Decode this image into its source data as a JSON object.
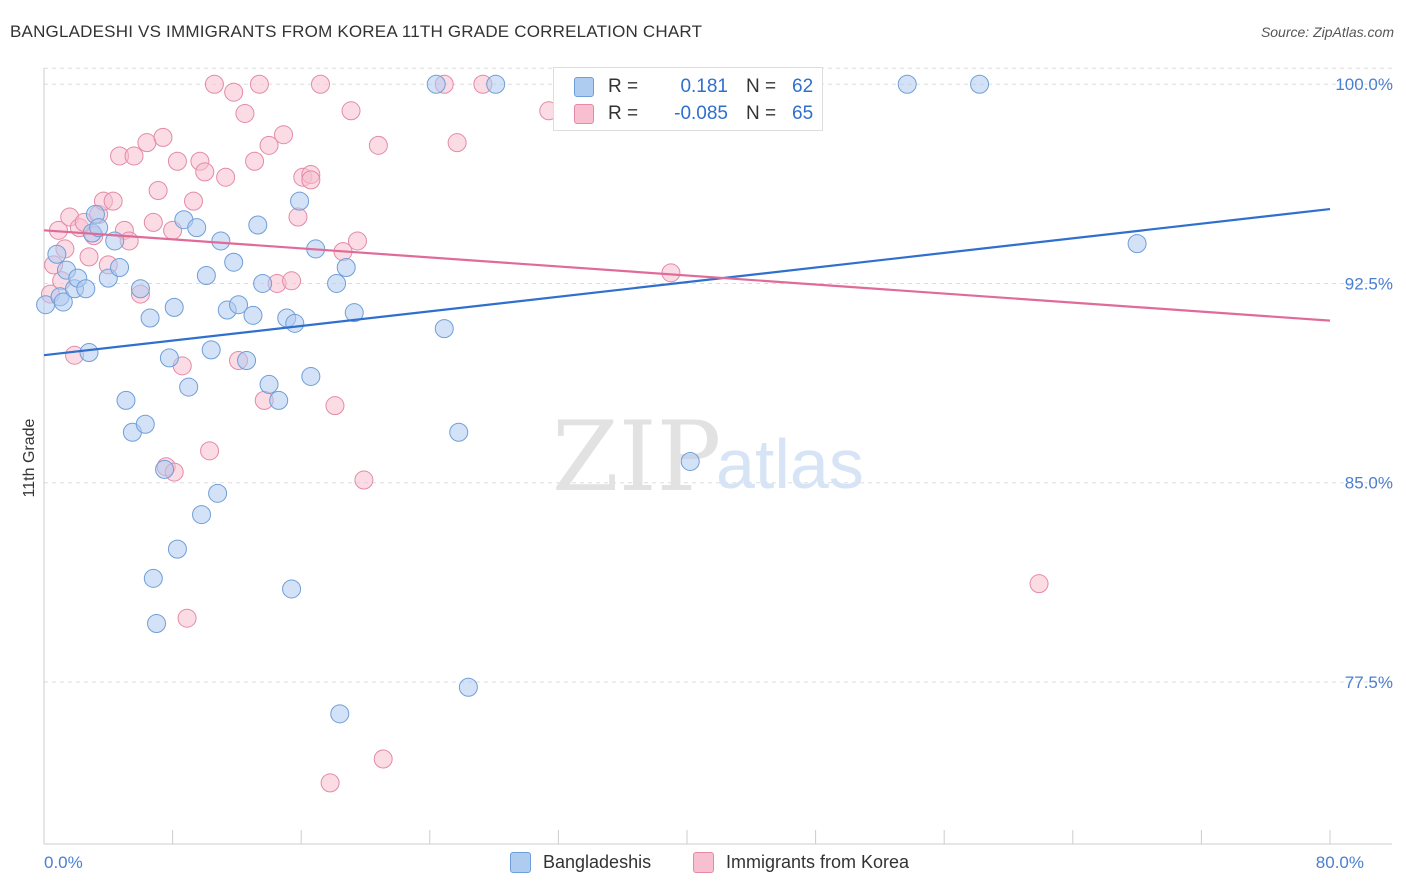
{
  "title": "BANGLADESHI VS IMMIGRANTS FROM KOREA 11TH GRADE CORRELATION CHART",
  "source": "Source: ZipAtlas.com",
  "watermark": {
    "zip": "ZIP",
    "atlas": "atlas"
  },
  "legend": {
    "series1": {
      "r_label": "R =",
      "r_value": "0.181",
      "n_label": "N =",
      "n_value": "62"
    },
    "series2": {
      "r_label": "R =",
      "r_value": "-0.085",
      "n_label": "N =",
      "n_value": "65"
    }
  },
  "bottom_legend": {
    "series1": "Bangladeshis",
    "series2": "Immigrants from Korea"
  },
  "colors": {
    "series1_fill": "#aecbf0",
    "series1_stroke": "#6f9fd8",
    "series1_line": "#2f6fce",
    "series2_fill": "#f7bfd0",
    "series2_stroke": "#e38aa8",
    "series2_line": "#e06b98",
    "grid": "#dddddd",
    "tick_label": "#4a7fd0"
  },
  "chart_data": {
    "type": "scatter",
    "title": "BANGLADESHI VS IMMIGRANTS FROM KOREA 11TH GRADE CORRELATION CHART",
    "xlabel": "",
    "ylabel": "11th Grade",
    "xlim": [
      0,
      80
    ],
    "ylim": [
      71.4,
      101.1
    ],
    "x_tick_labels": [
      {
        "value": 0,
        "label": "0.0%"
      },
      {
        "value": 80,
        "label": "80.0%"
      }
    ],
    "y_tick_labels": [
      {
        "value": 100,
        "label": "100.0%"
      },
      {
        "value": 92.5,
        "label": "92.5%"
      },
      {
        "value": 85,
        "label": "85.0%"
      },
      {
        "value": 77.5,
        "label": "77.5%"
      }
    ],
    "series": [
      {
        "name": "Bangladeshis",
        "r": 0.181,
        "n": 62,
        "trend": [
          [
            0,
            89.8
          ],
          [
            80,
            95.3
          ]
        ],
        "points": [
          [
            0.1,
            91.7
          ],
          [
            0.8,
            93.6
          ],
          [
            1.0,
            92.0
          ],
          [
            1.2,
            91.8
          ],
          [
            1.4,
            93.0
          ],
          [
            1.9,
            92.3
          ],
          [
            2.1,
            92.7
          ],
          [
            2.6,
            92.3
          ],
          [
            3.0,
            94.4
          ],
          [
            3.2,
            95.1
          ],
          [
            2.8,
            89.9
          ],
          [
            4.0,
            92.7
          ],
          [
            4.4,
            94.1
          ],
          [
            4.7,
            93.1
          ],
          [
            5.1,
            88.1
          ],
          [
            5.5,
            86.9
          ],
          [
            6.0,
            92.3
          ],
          [
            6.3,
            87.2
          ],
          [
            6.6,
            91.2
          ],
          [
            6.8,
            81.4
          ],
          [
            7.0,
            79.7
          ],
          [
            7.5,
            85.5
          ],
          [
            7.8,
            89.7
          ],
          [
            8.1,
            91.6
          ],
          [
            8.3,
            82.5
          ],
          [
            8.7,
            94.9
          ],
          [
            9.0,
            88.6
          ],
          [
            9.5,
            94.6
          ],
          [
            9.8,
            83.8
          ],
          [
            10.1,
            92.8
          ],
          [
            10.4,
            90.0
          ],
          [
            10.8,
            84.6
          ],
          [
            11.0,
            94.1
          ],
          [
            11.4,
            91.5
          ],
          [
            11.8,
            93.3
          ],
          [
            12.1,
            91.7
          ],
          [
            12.6,
            89.6
          ],
          [
            13.0,
            91.3
          ],
          [
            13.3,
            94.7
          ],
          [
            13.6,
            92.5
          ],
          [
            14.0,
            88.7
          ],
          [
            14.6,
            88.1
          ],
          [
            15.1,
            91.2
          ],
          [
            15.4,
            81.0
          ],
          [
            15.6,
            91.0
          ],
          [
            15.9,
            95.6
          ],
          [
            16.6,
            89.0
          ],
          [
            16.9,
            93.8
          ],
          [
            18.2,
            92.5
          ],
          [
            18.4,
            76.3
          ],
          [
            18.8,
            93.1
          ],
          [
            19.3,
            91.4
          ],
          [
            24.4,
            100.0
          ],
          [
            24.9,
            90.8
          ],
          [
            25.8,
            86.9
          ],
          [
            26.4,
            77.3
          ],
          [
            28.1,
            100.0
          ],
          [
            40.2,
            85.8
          ],
          [
            53.7,
            100.0
          ],
          [
            58.2,
            100.0
          ],
          [
            68.0,
            94.0
          ],
          [
            3.4,
            94.6
          ]
        ]
      },
      {
        "name": "Immigrants from Korea",
        "r": -0.085,
        "n": 65,
        "trend": [
          [
            0,
            94.5
          ],
          [
            80,
            91.1
          ]
        ],
        "points": [
          [
            0.4,
            92.1
          ],
          [
            0.6,
            93.2
          ],
          [
            0.9,
            94.5
          ],
          [
            1.1,
            92.6
          ],
          [
            1.3,
            93.8
          ],
          [
            1.6,
            95.0
          ],
          [
            1.9,
            89.8
          ],
          [
            2.2,
            94.6
          ],
          [
            2.5,
            94.8
          ],
          [
            2.8,
            93.5
          ],
          [
            3.1,
            94.3
          ],
          [
            3.4,
            95.1
          ],
          [
            3.7,
            95.6
          ],
          [
            4.0,
            93.2
          ],
          [
            4.3,
            95.6
          ],
          [
            4.7,
            97.3
          ],
          [
            5.0,
            94.5
          ],
          [
            5.3,
            94.1
          ],
          [
            5.6,
            97.3
          ],
          [
            6.0,
            92.1
          ],
          [
            6.4,
            97.8
          ],
          [
            6.8,
            94.8
          ],
          [
            7.1,
            96.0
          ],
          [
            7.4,
            98.0
          ],
          [
            7.6,
            85.6
          ],
          [
            8.0,
            94.5
          ],
          [
            8.3,
            97.1
          ],
          [
            8.6,
            89.4
          ],
          [
            8.9,
            79.9
          ],
          [
            9.3,
            95.6
          ],
          [
            9.7,
            97.1
          ],
          [
            10.0,
            96.7
          ],
          [
            10.3,
            86.2
          ],
          [
            10.6,
            100.0
          ],
          [
            11.3,
            96.5
          ],
          [
            11.8,
            99.7
          ],
          [
            12.1,
            89.6
          ],
          [
            12.5,
            98.9
          ],
          [
            13.1,
            97.1
          ],
          [
            13.4,
            100.0
          ],
          [
            13.7,
            88.1
          ],
          [
            14.0,
            97.7
          ],
          [
            14.5,
            92.5
          ],
          [
            14.9,
            98.1
          ],
          [
            15.4,
            92.6
          ],
          [
            15.8,
            95.0
          ],
          [
            16.1,
            96.5
          ],
          [
            16.6,
            96.6
          ],
          [
            17.2,
            100.0
          ],
          [
            18.1,
            87.9
          ],
          [
            18.6,
            93.7
          ],
          [
            19.1,
            99.0
          ],
          [
            19.5,
            94.1
          ],
          [
            19.9,
            85.1
          ],
          [
            20.8,
            97.7
          ],
          [
            21.1,
            74.6
          ],
          [
            24.9,
            100.0
          ],
          [
            25.7,
            97.8
          ],
          [
            27.3,
            100.0
          ],
          [
            31.4,
            99.0
          ],
          [
            39.0,
            92.9
          ],
          [
            61.9,
            81.2
          ],
          [
            17.8,
            73.7
          ],
          [
            8.1,
            85.4
          ],
          [
            16.6,
            96.4
          ]
        ]
      }
    ]
  }
}
